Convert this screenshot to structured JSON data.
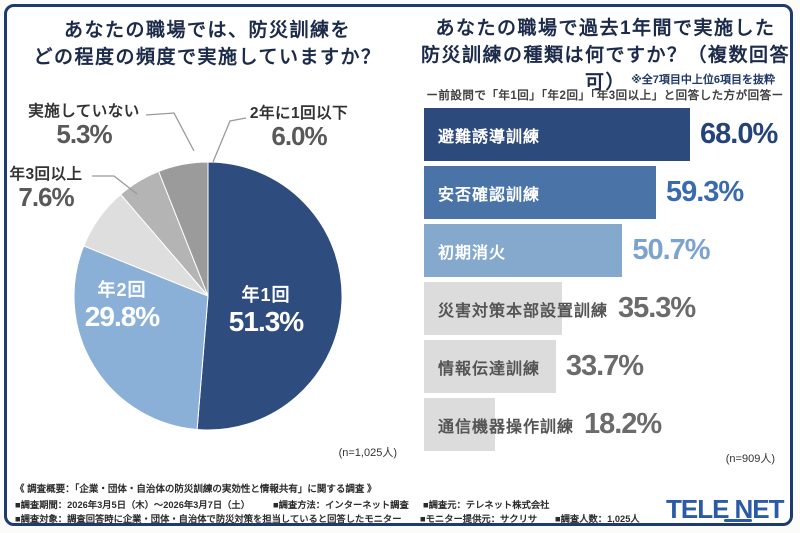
{
  "card": {
    "border_color": "#1e3a6e",
    "background": "#ffffff"
  },
  "chart_data": [
    {
      "type": "pie",
      "title": "あなたの職場では、防災訓練をどの程度の頻度で実施していますか？",
      "title_lines": [
        "あなたの職場では、防災訓練を",
        "どの程度の頻度で実施していますか？"
      ],
      "sample_label": "(n=1,025人)",
      "start_angle": "top",
      "direction": "clockwise",
      "segments": [
        {
          "label": "年1回",
          "value": 51.3,
          "value_label": "51.3%",
          "color": "#2e4d7e",
          "label_placement": "inside"
        },
        {
          "label": "年2回",
          "value": 29.8,
          "value_label": "29.8%",
          "color": "#8ab0d7",
          "label_placement": "inside"
        },
        {
          "label": "年3回以上",
          "value": 7.6,
          "value_label": "7.6%",
          "color": "#dedede",
          "label_placement": "outside"
        },
        {
          "label": "実施していない",
          "value": 5.3,
          "value_label": "5.3%",
          "color": "#b4b4b4",
          "label_placement": "outside"
        },
        {
          "label": "2年に1回以下",
          "value": 6.0,
          "value_label": "6.0%",
          "color": "#9b9b9b",
          "label_placement": "outside"
        }
      ]
    },
    {
      "type": "bar",
      "orientation": "horizontal",
      "title": "あなたの職場で過去1年間で実施した防災訓練の種類は何ですか？（複数回答可）",
      "title_lines": [
        "あなたの職場で過去1年間で実施した",
        "防災訓練の種類は何ですか？（複数回答可）"
      ],
      "note": "※全7項目中上位6項目を抜粋",
      "subtitle": "ー前設問で「年1回」「年2回」「年3回以上」と回答した方が回答ー",
      "sample_label": "(n=909人)",
      "xlim": [
        0,
        68
      ],
      "items": [
        {
          "label": "避難誘導訓練",
          "value": 68.0,
          "value_label": "68.0%",
          "bar_color": "#2c4a7c",
          "label_color": "#ffffff",
          "value_color": "#24437a"
        },
        {
          "label": "安否確認訓練",
          "value": 59.3,
          "value_label": "59.3%",
          "bar_color": "#4a74a8",
          "label_color": "#ffffff",
          "value_color": "#3a6cab"
        },
        {
          "label": "初期消火",
          "value": 50.7,
          "value_label": "50.7%",
          "bar_color": "#84a9cd",
          "label_color": "#ffffff",
          "value_color": "#7ca3cc"
        },
        {
          "label": "災害対策本部設置訓練",
          "value": 35.3,
          "value_label": "35.3%",
          "bar_color": "#dcdcdc",
          "label_color": "#555555",
          "value_color": "#6b6b6b"
        },
        {
          "label": "情報伝達訓練",
          "value": 33.7,
          "value_label": "33.7%",
          "bar_color": "#dcdcdc",
          "label_color": "#555555",
          "value_color": "#6b6b6b"
        },
        {
          "label": "通信機器操作訓練",
          "value": 18.2,
          "value_label": "18.2%",
          "bar_color": "#dcdcdc",
          "label_color": "#555555",
          "value_color": "#6b6b6b"
        }
      ]
    }
  ],
  "footer": {
    "heading": "《 調査概要：「企業・団体・自治体の防災訓練の実効性と情報共有」に関する調査 》",
    "line2": [
      "■調査期間：2026年3月5日（木）〜2026年3月7日（土）",
      "■調査方法：インターネット調査",
      "■調査元：テレネット株式会社"
    ],
    "line3": [
      "■調査対象：調査回答時に企業・団体・自治体で防災対策を担当していると回答したモニター",
      "■モニター提供元：サクリサ",
      "■調査人数：1,025人"
    ]
  },
  "logo": {
    "part1": "TELE",
    "part2": "NET",
    "color": "#2b5aa7"
  }
}
